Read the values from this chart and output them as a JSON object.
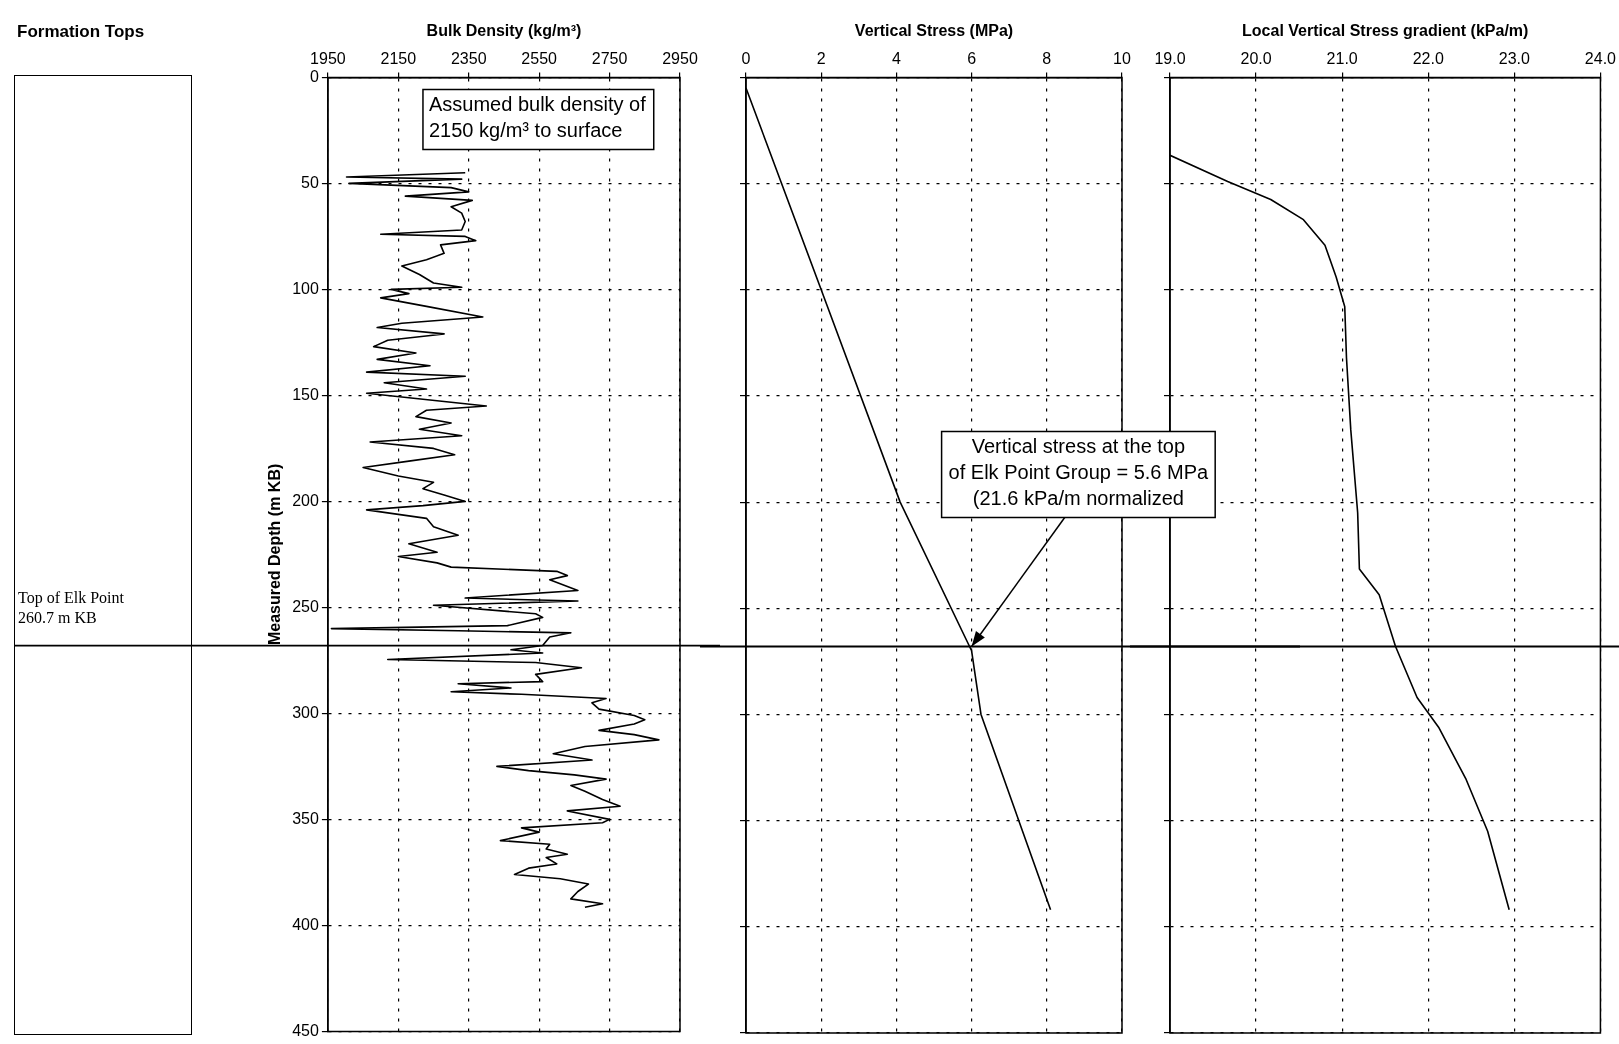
{
  "chart_data": [
    {
      "type": "other",
      "title": "Formation Tops",
      "annotations": [
        "Top of Elk Point\n260.7 m KB"
      ]
    },
    {
      "type": "line",
      "xlabel": "Bulk Density (kg/m³)",
      "ylabel": "Measured Depth (m KB)",
      "xlim": [
        1950,
        2950
      ],
      "xticks": [
        1950,
        2150,
        2350,
        2550,
        2750,
        2950
      ],
      "ylim": [
        450,
        0
      ],
      "yticks": [
        0,
        50,
        100,
        150,
        200,
        250,
        300,
        350,
        400,
        450
      ],
      "grid": true,
      "ref_lines": [
        {
          "axis": "y",
          "value": 268
        }
      ],
      "annotations": [
        "Assumed bulk density of\n2150 kg/m³ to surface"
      ],
      "series": [
        {
          "color": "#000000",
          "x": [
            2340,
            2003,
            2330,
            2010,
            2300,
            2350,
            2170,
            2360,
            2300,
            2330,
            2340,
            2330,
            2100,
            2340,
            2370,
            2270,
            2280,
            2230,
            2160,
            2210,
            2250,
            2330,
            2130,
            2180,
            2100,
            2230,
            2390,
            2160,
            2090,
            2280,
            2120,
            2080,
            2200,
            2090,
            2240,
            2060,
            2340,
            2110,
            2230,
            2060,
            2400,
            2230,
            2200,
            2300,
            2210,
            2330,
            2070,
            2250,
            2310,
            2180,
            2050,
            2150,
            2250,
            2220,
            2280,
            2340,
            2220,
            2060,
            2230,
            2250,
            2320,
            2180,
            2260,
            2150,
            2260,
            2300,
            2600,
            2630,
            2580,
            2660,
            2340,
            2660,
            2250,
            2540,
            2560,
            2460,
            1960,
            2320,
            2640,
            2580,
            2560,
            2470,
            2560,
            2120,
            2540,
            2670,
            2540,
            2560,
            2320,
            2470,
            2300,
            2500,
            2740,
            2700,
            2720,
            2820,
            2850,
            2820,
            2720,
            2820,
            2890,
            2680,
            2590,
            2700,
            2430,
            2520,
            2650,
            2740,
            2640,
            2680,
            2730,
            2780,
            2630,
            2750,
            2730,
            2500,
            2550,
            2440,
            2580,
            2570,
            2630,
            2570,
            2600,
            2520,
            2480,
            2610,
            2690,
            2660,
            2640,
            2730,
            2680
          ],
          "values": [
            45,
            47,
            48,
            50,
            52,
            54,
            56,
            58,
            61,
            64,
            68,
            72,
            74,
            75,
            77,
            79,
            83,
            86,
            89,
            93,
            97,
            99,
            100,
            102,
            104,
            108,
            113,
            116,
            118,
            121,
            124,
            127,
            130,
            133,
            136,
            139,
            141,
            144,
            147,
            149,
            155,
            157,
            160,
            163,
            166,
            169,
            172,
            175,
            178,
            181,
            184,
            188,
            191,
            194,
            197,
            200,
            202,
            204,
            208,
            212,
            216,
            220,
            224,
            226,
            229,
            231,
            233,
            235,
            237,
            242,
            245.6,
            247,
            249,
            253,
            254.7,
            258.6,
            260,
            261,
            262,
            264,
            268,
            270,
            271.5,
            274.6,
            276,
            278.5,
            281.6,
            285,
            286,
            288,
            289.8,
            291,
            293,
            295,
            298,
            301,
            303,
            305,
            308,
            310,
            312.5,
            315.6,
            319,
            322,
            325,
            327,
            329,
            331,
            334,
            336.7,
            340.6,
            343.8,
            346,
            350,
            351.6,
            354,
            356,
            360,
            361.7,
            364,
            366.4,
            368,
            371,
            373,
            376,
            378,
            380.5,
            384,
            387.5,
            389.8,
            391.4
          ]
        }
      ]
    },
    {
      "type": "line",
      "xlabel": "Vertical Stress (MPa)",
      "xlim": [
        0,
        10
      ],
      "xticks": [
        0,
        2,
        4,
        6,
        8,
        10
      ],
      "ylim": [
        450,
        0
      ],
      "yticks": [
        0,
        50,
        100,
        150,
        200,
        250,
        300,
        350,
        400,
        450
      ],
      "grid": true,
      "tick_labels": "x",
      "ref_lines": [
        {
          "axis": "y",
          "value": 268
        }
      ],
      "annotations": [
        {
          "text": "Vertical stress at the top\nof Elk Point Group = 5.6 MPa\n(21.6 kPa/m normalized",
          "x": 6,
          "y": 268
        }
      ],
      "series": [
        {
          "color": "#000000",
          "x": [
            0,
            2.0,
            4.1,
            6.0,
            6.25,
            8.1
          ],
          "values": [
            5,
            100,
            200,
            270,
            300,
            392
          ]
        }
      ]
    },
    {
      "type": "line",
      "xlabel": "Local Vertical Stress gradient (kPa/m)",
      "xlim": [
        19,
        24
      ],
      "xticks": [
        {
          "value": 19,
          "label": "19.0"
        },
        {
          "value": 20,
          "label": "20.0"
        },
        {
          "value": 21,
          "label": "21.0"
        },
        {
          "value": 22,
          "label": "22.0"
        },
        {
          "value": 23,
          "label": "23.0"
        },
        {
          "value": 24,
          "label": "24.0"
        }
      ],
      "ylim": [
        450,
        0
      ],
      "yticks": [
        0,
        50,
        100,
        150,
        200,
        250,
        300,
        350,
        400,
        450
      ],
      "grid": true,
      "tick_labels": "x",
      "ref_lines": [
        {
          "axis": "y",
          "value": 268
        }
      ],
      "series": [
        {
          "color": "#000000",
          "x": [
            19.0,
            19.67,
            20.17,
            20.55,
            20.8,
            20.93,
            21.03,
            21.05,
            21.1,
            21.18,
            21.2,
            21.43,
            21.62,
            21.87,
            22.12,
            22.44,
            22.69,
            22.94
          ],
          "values": [
            36.7,
            49,
            57.5,
            67,
            79,
            94,
            108,
            132,
            166,
            205,
            231.5,
            243.6,
            268,
            292,
            306,
            330.6,
            355,
            392
          ]
        }
      ]
    }
  ]
}
